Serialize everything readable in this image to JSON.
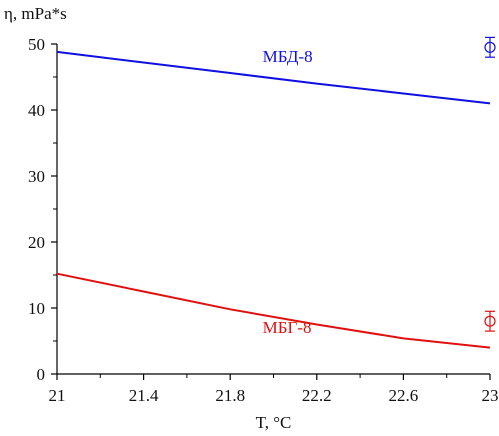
{
  "chart_data": {
    "type": "line",
    "ylabel": "η, mPa*s",
    "xlabel": "T, °C",
    "xlim": [
      21,
      23
    ],
    "ylim": [
      0,
      50
    ],
    "x_ticks": [
      "21",
      "21.4",
      "21.8",
      "22.2",
      "22.6",
      "23"
    ],
    "y_ticks": [
      "0",
      "10",
      "20",
      "30",
      "40",
      "50"
    ],
    "grid": false,
    "legend": "none",
    "series": [
      {
        "name": "МБД-8",
        "color": "#1010e0",
        "x": [
          21,
          21.4,
          21.8,
          22.2,
          22.6,
          23
        ],
        "y": [
          48.8,
          47.2,
          45.6,
          44.0,
          42.5,
          41.0
        ]
      },
      {
        "name": "МБГ-8",
        "color": "#e01010",
        "x": [
          21,
          21.4,
          21.8,
          22.2,
          22.6,
          23
        ],
        "y": [
          15.2,
          12.5,
          9.8,
          7.5,
          5.4,
          4.0
        ]
      }
    ],
    "error_markers": [
      {
        "series": "МБД-8",
        "color": "#1010e0",
        "x": 23,
        "y": 49.5,
        "err": 1.5
      },
      {
        "series": "МБГ-8",
        "color": "#e01010",
        "x": 23,
        "y": 8.0,
        "err": 1.5
      }
    ]
  }
}
